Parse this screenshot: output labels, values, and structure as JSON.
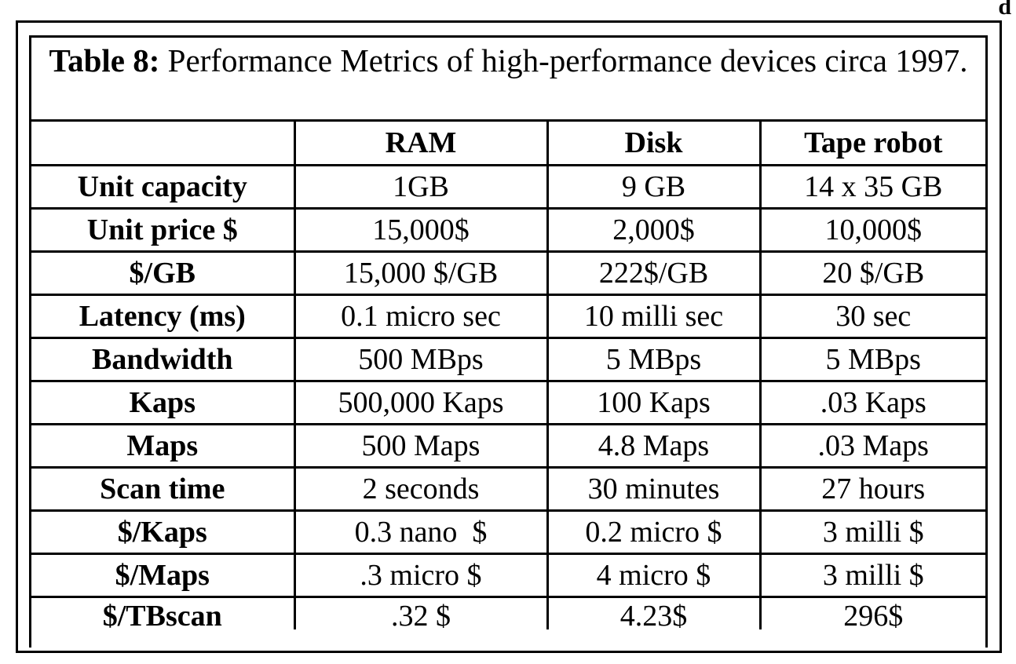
{
  "corner_mark": "d",
  "table": {
    "caption_label": "Table 8:",
    "caption_text": "Performance Metrics of high-performance devices circa 1997.",
    "headers": [
      "",
      "RAM",
      "Disk",
      "Tape robot"
    ],
    "rows": [
      [
        "Unit capacity",
        "1GB",
        "9 GB",
        "14 x 35 GB"
      ],
      [
        "Unit price $",
        "15,000$",
        "2,000$",
        "10,000$"
      ],
      [
        "$/GB",
        "15,000 $/GB",
        "222$/GB",
        "20 $/GB"
      ],
      [
        "Latency (ms)",
        "0.1 micro sec",
        "10 milli sec",
        "30 sec"
      ],
      [
        "Bandwidth",
        "500 MBps",
        "5 MBps",
        "5 MBps"
      ],
      [
        "Kaps",
        "500,000 Kaps",
        "100 Kaps",
        ".03 Kaps"
      ],
      [
        "Maps",
        "500 Maps",
        "4.8 Maps",
        ".03 Maps"
      ],
      [
        "Scan time",
        "2 seconds",
        "30 minutes",
        "27 hours"
      ],
      [
        "$/Kaps",
        "0.3 nano  $",
        "0.2 micro $",
        "3 milli $"
      ],
      [
        "$/Maps",
        ".3 micro $",
        "4 micro $",
        "3 milli $"
      ],
      [
        "$/TBscan",
        ".32 $",
        "4.23$",
        "296$"
      ]
    ]
  }
}
